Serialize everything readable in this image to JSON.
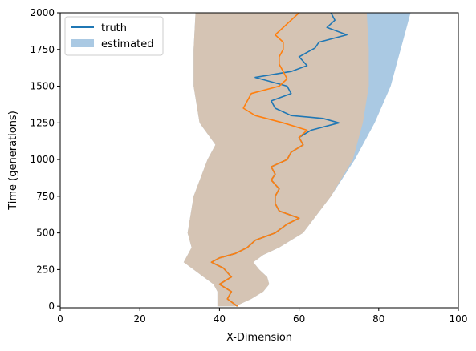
{
  "chart_data": {
    "type": "line",
    "xlabel": "X-Dimension",
    "ylabel": "Time (generations)",
    "xlim": [
      0,
      100
    ],
    "ylim": [
      -10,
      2000
    ],
    "xticks": [
      0,
      20,
      40,
      60,
      80,
      100
    ],
    "yticks": [
      0,
      250,
      500,
      750,
      1000,
      1250,
      1500,
      1750,
      2000
    ],
    "grid": false,
    "legend": {
      "placement": "top-left",
      "entries": [
        {
          "label": "truth",
          "kind": "line",
          "color": "#1f77b4"
        },
        {
          "label": "estimated",
          "kind": "patch",
          "color": "#aac9e3"
        }
      ]
    },
    "colors": {
      "truth": "#1f77b4",
      "estimate_line": "#ff7f0e",
      "band_blue": "#aac9e3",
      "band_overlap": "#d5c4b4"
    },
    "bands": [
      {
        "name": "estimated",
        "color": "#aac9e3",
        "left": [
          [
            2000,
            34
          ],
          [
            1750,
            33.5
          ],
          [
            1500,
            33.5
          ],
          [
            1250,
            35
          ],
          [
            1100,
            39
          ],
          [
            1000,
            37
          ],
          [
            750,
            33.5
          ],
          [
            500,
            32
          ],
          [
            450,
            32.5
          ],
          [
            400,
            33
          ],
          [
            350,
            32
          ],
          [
            300,
            31
          ],
          [
            250,
            33.5
          ],
          [
            200,
            36
          ],
          [
            150,
            38.5
          ],
          [
            100,
            39.5
          ],
          [
            50,
            39.5
          ],
          [
            0,
            39.5
          ]
        ],
        "right": [
          [
            0,
            44
          ],
          [
            50,
            48
          ],
          [
            100,
            51
          ],
          [
            150,
            52.5
          ],
          [
            200,
            52
          ],
          [
            250,
            50
          ],
          [
            300,
            48.5
          ],
          [
            350,
            51
          ],
          [
            400,
            55
          ],
          [
            500,
            61
          ],
          [
            750,
            68
          ],
          [
            1000,
            74
          ],
          [
            1250,
            79
          ],
          [
            1500,
            83
          ],
          [
            1750,
            85.5
          ],
          [
            2000,
            88
          ]
        ]
      },
      {
        "name": "estimated-overlap",
        "color": "#d5c4b4",
        "left": [
          [
            2000,
            34
          ],
          [
            1750,
            33.5
          ],
          [
            1500,
            33.5
          ],
          [
            1250,
            35
          ],
          [
            1100,
            39
          ],
          [
            1000,
            37
          ],
          [
            750,
            33.5
          ],
          [
            500,
            32
          ],
          [
            450,
            32.5
          ],
          [
            400,
            33
          ],
          [
            350,
            32
          ],
          [
            300,
            31
          ],
          [
            250,
            33.5
          ],
          [
            200,
            36
          ],
          [
            150,
            38.5
          ],
          [
            100,
            39.5
          ],
          [
            50,
            39.5
          ],
          [
            0,
            39.5
          ]
        ],
        "right": [
          [
            0,
            44
          ],
          [
            50,
            48
          ],
          [
            100,
            51
          ],
          [
            150,
            52.5
          ],
          [
            200,
            52
          ],
          [
            250,
            50
          ],
          [
            300,
            48.5
          ],
          [
            350,
            51
          ],
          [
            400,
            55
          ],
          [
            500,
            61
          ],
          [
            750,
            68
          ],
          [
            1000,
            73.5
          ],
          [
            1100,
            74.5
          ],
          [
            1250,
            76
          ],
          [
            1500,
            77.5
          ],
          [
            1750,
            77.5
          ],
          [
            2000,
            77
          ]
        ]
      }
    ],
    "series": [
      {
        "name": "truth",
        "color": "#1f77b4",
        "points": [
          [
            0,
            44.5
          ],
          [
            50,
            42
          ],
          [
            100,
            43
          ],
          [
            150,
            40
          ],
          [
            200,
            43
          ],
          [
            260,
            41
          ],
          [
            300,
            38
          ],
          [
            330,
            40
          ],
          [
            360,
            44
          ],
          [
            400,
            47
          ],
          [
            450,
            49
          ],
          [
            500,
            54
          ],
          [
            560,
            57
          ],
          [
            600,
            60
          ],
          [
            650,
            55
          ],
          [
            700,
            54
          ],
          [
            750,
            54
          ],
          [
            800,
            55
          ],
          [
            860,
            53
          ],
          [
            900,
            54
          ],
          [
            950,
            53
          ],
          [
            1000,
            57
          ],
          [
            1050,
            58
          ],
          [
            1100,
            61
          ],
          [
            1150,
            60
          ],
          [
            1200,
            63
          ],
          [
            1250,
            70
          ],
          [
            1280,
            66
          ],
          [
            1300,
            58
          ],
          [
            1350,
            54
          ],
          [
            1400,
            53
          ],
          [
            1450,
            58
          ],
          [
            1500,
            57
          ],
          [
            1560,
            49
          ],
          [
            1600,
            58
          ],
          [
            1640,
            62
          ],
          [
            1700,
            60
          ],
          [
            1760,
            64
          ],
          [
            1800,
            65
          ],
          [
            1850,
            72
          ],
          [
            1900,
            67
          ],
          [
            1950,
            69
          ],
          [
            2000,
            68
          ]
        ]
      },
      {
        "name": "estimated-path",
        "color": "#ff7f0e",
        "points": [
          [
            0,
            44.5
          ],
          [
            50,
            42
          ],
          [
            100,
            43
          ],
          [
            150,
            40
          ],
          [
            200,
            43
          ],
          [
            260,
            41
          ],
          [
            300,
            38
          ],
          [
            330,
            40
          ],
          [
            360,
            44
          ],
          [
            400,
            47
          ],
          [
            450,
            49
          ],
          [
            500,
            54
          ],
          [
            560,
            57
          ],
          [
            600,
            60
          ],
          [
            650,
            55
          ],
          [
            700,
            54
          ],
          [
            750,
            54
          ],
          [
            800,
            55
          ],
          [
            860,
            53
          ],
          [
            900,
            54
          ],
          [
            950,
            53
          ],
          [
            1000,
            57
          ],
          [
            1050,
            58
          ],
          [
            1100,
            61
          ],
          [
            1150,
            60
          ],
          [
            1200,
            62
          ],
          [
            1250,
            56
          ],
          [
            1300,
            49
          ],
          [
            1350,
            46
          ],
          [
            1400,
            47
          ],
          [
            1450,
            48
          ],
          [
            1500,
            55
          ],
          [
            1550,
            57
          ],
          [
            1600,
            56
          ],
          [
            1650,
            55
          ],
          [
            1700,
            55
          ],
          [
            1750,
            56
          ],
          [
            1800,
            56
          ],
          [
            1850,
            54
          ],
          [
            1900,
            56
          ],
          [
            1950,
            58
          ],
          [
            2000,
            60
          ]
        ]
      }
    ]
  }
}
